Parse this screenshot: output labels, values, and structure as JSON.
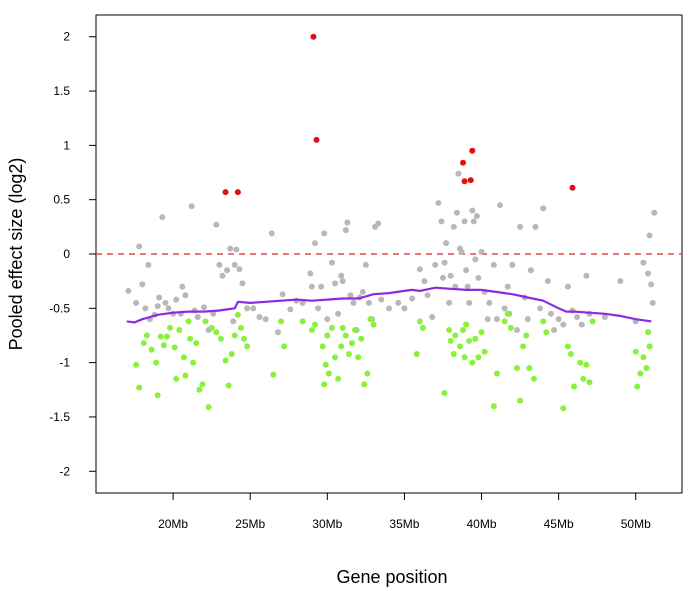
{
  "chart_data": {
    "type": "scatter",
    "title": "",
    "xlabel": "Gene position",
    "ylabel": "Pooled effect size (log2)",
    "xlim": [
      15.0,
      53.0
    ],
    "ylim": [
      -2.2,
      2.2
    ],
    "x_unit": "Mb",
    "x_ticks": [
      {
        "value": 20,
        "label": "20Mb"
      },
      {
        "value": 25,
        "label": "25Mb"
      },
      {
        "value": 30,
        "label": "30Mb"
      },
      {
        "value": 35,
        "label": "35Mb"
      },
      {
        "value": 40,
        "label": "40Mb"
      },
      {
        "value": 45,
        "label": "45Mb"
      },
      {
        "value": 50,
        "label": "50Mb"
      }
    ],
    "y_ticks": [
      {
        "value": 2,
        "label": "2"
      },
      {
        "value": 1.5,
        "label": "1.5"
      },
      {
        "value": 1,
        "label": "1"
      },
      {
        "value": 0.5,
        "label": "0.5"
      },
      {
        "value": 0,
        "label": "0"
      },
      {
        "value": -0.5,
        "label": "-0.5"
      },
      {
        "value": -1,
        "label": "-1"
      },
      {
        "value": -1.5,
        "label": "-1.5"
      },
      {
        "value": -2,
        "label": "-2"
      }
    ],
    "grid": false,
    "reference_line": {
      "y": 0,
      "color": "#e04848",
      "style": "dashed"
    },
    "colors": {
      "red": "#dd1111",
      "gray": "#b8b8b8",
      "green": "#88f23a",
      "trend": "#8a2be2"
    },
    "series": [
      {
        "color_key": "red",
        "points": [
          [
            23.4,
            0.57
          ],
          [
            24.2,
            0.57
          ],
          [
            29.1,
            2.0
          ],
          [
            29.3,
            1.05
          ],
          [
            38.8,
            0.84
          ],
          [
            38.9,
            0.67
          ],
          [
            39.3,
            0.68
          ],
          [
            39.4,
            0.95
          ],
          [
            45.9,
            0.61
          ]
        ]
      },
      {
        "color_key": "gray",
        "points": [
          [
            17.1,
            -0.34
          ],
          [
            17.6,
            -0.45
          ],
          [
            17.8,
            0.07
          ],
          [
            18.0,
            -0.28
          ],
          [
            18.2,
            -0.5
          ],
          [
            18.4,
            -0.1
          ],
          [
            18.5,
            -0.6
          ],
          [
            18.8,
            -0.56
          ],
          [
            19.0,
            -0.48
          ],
          [
            19.1,
            -0.4
          ],
          [
            19.3,
            0.34
          ],
          [
            19.5,
            -0.45
          ],
          [
            19.7,
            -0.5
          ],
          [
            20.0,
            -0.55
          ],
          [
            20.2,
            -0.42
          ],
          [
            20.5,
            -0.55
          ],
          [
            20.6,
            -0.3
          ],
          [
            20.8,
            -0.38
          ],
          [
            21.2,
            0.44
          ],
          [
            21.4,
            -0.52
          ],
          [
            21.6,
            -0.58
          ],
          [
            22.0,
            -0.49
          ],
          [
            22.3,
            -0.7
          ],
          [
            22.6,
            -0.55
          ],
          [
            22.8,
            0.27
          ],
          [
            23.0,
            -0.1
          ],
          [
            23.2,
            -0.2
          ],
          [
            23.5,
            -0.15
          ],
          [
            23.7,
            0.05
          ],
          [
            23.9,
            -0.62
          ],
          [
            24.0,
            -0.1
          ],
          [
            24.3,
            -0.14
          ],
          [
            24.5,
            -0.27
          ],
          [
            24.1,
            0.04
          ],
          [
            24.8,
            -0.5
          ],
          [
            25.2,
            -0.5
          ],
          [
            25.6,
            -0.58
          ],
          [
            26.0,
            -0.6
          ],
          [
            26.4,
            0.19
          ],
          [
            26.8,
            -0.72
          ],
          [
            27.1,
            -0.37
          ],
          [
            27.6,
            -0.51
          ],
          [
            28.0,
            -0.43
          ],
          [
            28.4,
            -0.45
          ],
          [
            28.9,
            -0.18
          ],
          [
            29.0,
            -0.3
          ],
          [
            29.2,
            0.1
          ],
          [
            29.4,
            -0.5
          ],
          [
            29.6,
            -0.3
          ],
          [
            29.8,
            0.19
          ],
          [
            30.0,
            -0.6
          ],
          [
            30.3,
            -0.08
          ],
          [
            30.5,
            -0.27
          ],
          [
            30.7,
            -0.55
          ],
          [
            30.9,
            -0.2
          ],
          [
            31.0,
            -0.25
          ],
          [
            31.2,
            0.22
          ],
          [
            31.3,
            0.29
          ],
          [
            31.5,
            -0.38
          ],
          [
            31.7,
            -0.45
          ],
          [
            31.9,
            -0.7
          ],
          [
            32.1,
            -0.4
          ],
          [
            32.3,
            -0.35
          ],
          [
            32.5,
            -0.1
          ],
          [
            32.7,
            -0.45
          ],
          [
            32.9,
            -0.6
          ],
          [
            33.1,
            0.25
          ],
          [
            33.3,
            0.28
          ],
          [
            33.5,
            -0.42
          ],
          [
            34.0,
            -0.5
          ],
          [
            34.6,
            -0.45
          ],
          [
            35.0,
            -0.5
          ],
          [
            35.5,
            -0.41
          ],
          [
            36.0,
            -0.14
          ],
          [
            36.3,
            -0.25
          ],
          [
            36.5,
            -0.38
          ],
          [
            36.8,
            -0.58
          ],
          [
            37.0,
            -0.1
          ],
          [
            37.2,
            0.47
          ],
          [
            37.4,
            0.3
          ],
          [
            37.5,
            -0.22
          ],
          [
            37.6,
            -0.08
          ],
          [
            37.7,
            0.1
          ],
          [
            37.9,
            -0.45
          ],
          [
            38.0,
            -0.2
          ],
          [
            38.2,
            0.25
          ],
          [
            38.3,
            -0.3
          ],
          [
            38.4,
            0.38
          ],
          [
            38.5,
            0.74
          ],
          [
            38.6,
            0.05
          ],
          [
            38.7,
            0.02
          ],
          [
            38.9,
            0.3
          ],
          [
            39.0,
            -0.15
          ],
          [
            39.1,
            -0.3
          ],
          [
            39.2,
            -0.45
          ],
          [
            39.4,
            0.4
          ],
          [
            39.5,
            0.3
          ],
          [
            39.6,
            -0.05
          ],
          [
            39.7,
            0.35
          ],
          [
            39.8,
            -0.22
          ],
          [
            40.0,
            0.02
          ],
          [
            40.2,
            -0.35
          ],
          [
            40.4,
            -0.6
          ],
          [
            40.5,
            -0.45
          ],
          [
            40.8,
            -0.1
          ],
          [
            41.0,
            -0.6
          ],
          [
            41.2,
            0.45
          ],
          [
            41.5,
            -0.5
          ],
          [
            41.7,
            -0.3
          ],
          [
            41.8,
            -0.55
          ],
          [
            42.0,
            -0.1
          ],
          [
            42.3,
            -0.7
          ],
          [
            42.5,
            0.25
          ],
          [
            42.8,
            -0.4
          ],
          [
            43.0,
            -0.6
          ],
          [
            43.2,
            -0.15
          ],
          [
            43.5,
            0.25
          ],
          [
            43.8,
            -0.5
          ],
          [
            44.0,
            0.42
          ],
          [
            44.3,
            -0.25
          ],
          [
            44.5,
            -0.55
          ],
          [
            44.7,
            -0.7
          ],
          [
            45.0,
            -0.6
          ],
          [
            45.3,
            -0.65
          ],
          [
            45.6,
            -0.3
          ],
          [
            45.9,
            -0.52
          ],
          [
            46.2,
            -0.58
          ],
          [
            46.5,
            -0.65
          ],
          [
            46.8,
            -0.2
          ],
          [
            47.0,
            -0.55
          ],
          [
            48.0,
            -0.58
          ],
          [
            49.0,
            -0.25
          ],
          [
            50.0,
            -0.62
          ],
          [
            50.5,
            -0.08
          ],
          [
            50.8,
            -0.18
          ],
          [
            50.9,
            0.17
          ],
          [
            51.0,
            -0.28
          ],
          [
            51.1,
            -0.45
          ],
          [
            51.2,
            0.38
          ]
        ]
      },
      {
        "color_key": "green",
        "points": [
          [
            17.6,
            -1.02
          ],
          [
            17.8,
            -1.23
          ],
          [
            18.1,
            -0.82
          ],
          [
            18.3,
            -0.75
          ],
          [
            18.6,
            -0.88
          ],
          [
            18.9,
            -1.0
          ],
          [
            19.0,
            -1.3
          ],
          [
            19.2,
            -0.76
          ],
          [
            19.4,
            -0.84
          ],
          [
            19.6,
            -0.76
          ],
          [
            19.8,
            -0.68
          ],
          [
            20.1,
            -0.86
          ],
          [
            20.2,
            -1.15
          ],
          [
            20.4,
            -0.7
          ],
          [
            20.7,
            -0.95
          ],
          [
            20.8,
            -1.12
          ],
          [
            21.0,
            -0.62
          ],
          [
            21.1,
            -0.78
          ],
          [
            21.3,
            -1.0
          ],
          [
            21.5,
            -0.82
          ],
          [
            21.7,
            -1.25
          ],
          [
            21.9,
            -1.2
          ],
          [
            22.1,
            -0.62
          ],
          [
            22.3,
            -1.41
          ],
          [
            22.5,
            -0.68
          ],
          [
            22.8,
            -0.72
          ],
          [
            23.1,
            -0.78
          ],
          [
            23.4,
            -0.98
          ],
          [
            23.6,
            -1.21
          ],
          [
            23.8,
            -0.92
          ],
          [
            24.0,
            -0.75
          ],
          [
            24.2,
            -0.56
          ],
          [
            24.4,
            -0.68
          ],
          [
            24.6,
            -0.78
          ],
          [
            24.8,
            -0.85
          ],
          [
            26.5,
            -1.11
          ],
          [
            27.0,
            -0.62
          ],
          [
            27.2,
            -0.85
          ],
          [
            28.4,
            -0.62
          ],
          [
            29.0,
            -0.7
          ],
          [
            29.2,
            -0.65
          ],
          [
            29.7,
            -0.85
          ],
          [
            29.8,
            -1.2
          ],
          [
            29.9,
            -1.02
          ],
          [
            30.0,
            -0.75
          ],
          [
            30.1,
            -1.1
          ],
          [
            30.3,
            -0.68
          ],
          [
            30.5,
            -0.95
          ],
          [
            30.7,
            -1.15
          ],
          [
            30.9,
            -0.85
          ],
          [
            31.0,
            -0.68
          ],
          [
            31.2,
            -0.75
          ],
          [
            31.4,
            -0.92
          ],
          [
            31.6,
            -0.82
          ],
          [
            31.8,
            -0.7
          ],
          [
            32.0,
            -0.95
          ],
          [
            32.2,
            -0.78
          ],
          [
            32.4,
            -1.2
          ],
          [
            32.6,
            -1.1
          ],
          [
            32.8,
            -0.6
          ],
          [
            33.0,
            -0.65
          ],
          [
            35.8,
            -0.92
          ],
          [
            36.0,
            -0.62
          ],
          [
            36.2,
            -0.68
          ],
          [
            37.6,
            -1.28
          ],
          [
            37.9,
            -0.7
          ],
          [
            38.0,
            -0.8
          ],
          [
            38.2,
            -0.92
          ],
          [
            38.3,
            -0.75
          ],
          [
            38.6,
            -0.85
          ],
          [
            38.8,
            -0.7
          ],
          [
            38.9,
            -0.95
          ],
          [
            39.0,
            -0.65
          ],
          [
            39.2,
            -0.8
          ],
          [
            39.4,
            -1.0
          ],
          [
            39.6,
            -0.78
          ],
          [
            39.8,
            -0.95
          ],
          [
            40.0,
            -0.72
          ],
          [
            40.2,
            -0.9
          ],
          [
            40.8,
            -1.4
          ],
          [
            41.0,
            -1.1
          ],
          [
            41.5,
            -0.62
          ],
          [
            41.7,
            -0.55
          ],
          [
            41.9,
            -0.68
          ],
          [
            42.3,
            -1.05
          ],
          [
            42.5,
            -1.35
          ],
          [
            42.7,
            -0.85
          ],
          [
            42.9,
            -0.75
          ],
          [
            43.1,
            -1.05
          ],
          [
            43.4,
            -1.15
          ],
          [
            44.0,
            -0.62
          ],
          [
            44.2,
            -0.72
          ],
          [
            45.3,
            -1.42
          ],
          [
            45.6,
            -0.85
          ],
          [
            45.8,
            -0.92
          ],
          [
            46.0,
            -1.22
          ],
          [
            46.4,
            -1.0
          ],
          [
            46.6,
            -1.15
          ],
          [
            46.8,
            -1.02
          ],
          [
            47.0,
            -1.18
          ],
          [
            47.2,
            -0.62
          ],
          [
            50.0,
            -0.9
          ],
          [
            50.1,
            -1.22
          ],
          [
            50.3,
            -1.1
          ],
          [
            50.5,
            -0.95
          ],
          [
            50.7,
            -1.05
          ],
          [
            50.8,
            -0.72
          ],
          [
            50.9,
            -0.85
          ]
        ]
      }
    ],
    "trend_line": {
      "points": [
        [
          17.0,
          -0.62
        ],
        [
          17.5,
          -0.63
        ],
        [
          18.0,
          -0.6
        ],
        [
          18.5,
          -0.58
        ],
        [
          19.0,
          -0.56
        ],
        [
          20.0,
          -0.54
        ],
        [
          21.0,
          -0.53
        ],
        [
          22.0,
          -0.53
        ],
        [
          23.0,
          -0.52
        ],
        [
          23.5,
          -0.51
        ],
        [
          24.0,
          -0.5
        ],
        [
          24.2,
          -0.44
        ],
        [
          25.0,
          -0.45
        ],
        [
          26.0,
          -0.44
        ],
        [
          27.0,
          -0.43
        ],
        [
          28.0,
          -0.42
        ],
        [
          29.0,
          -0.43
        ],
        [
          30.0,
          -0.42
        ],
        [
          31.0,
          -0.41
        ],
        [
          32.0,
          -0.41
        ],
        [
          32.5,
          -0.39
        ],
        [
          33.0,
          -0.37
        ],
        [
          34.0,
          -0.36
        ],
        [
          35.0,
          -0.34
        ],
        [
          35.5,
          -0.33
        ],
        [
          36.0,
          -0.34
        ],
        [
          37.0,
          -0.31
        ],
        [
          38.0,
          -0.32
        ],
        [
          39.0,
          -0.33
        ],
        [
          40.0,
          -0.33
        ],
        [
          41.0,
          -0.35
        ],
        [
          42.0,
          -0.37
        ],
        [
          43.0,
          -0.4
        ],
        [
          44.0,
          -0.43
        ],
        [
          45.0,
          -0.5
        ],
        [
          45.5,
          -0.53
        ],
        [
          46.0,
          -0.53
        ],
        [
          47.0,
          -0.54
        ],
        [
          48.0,
          -0.55
        ],
        [
          49.0,
          -0.57
        ],
        [
          50.0,
          -0.6
        ],
        [
          50.5,
          -0.61
        ],
        [
          51.0,
          -0.62
        ]
      ]
    }
  }
}
